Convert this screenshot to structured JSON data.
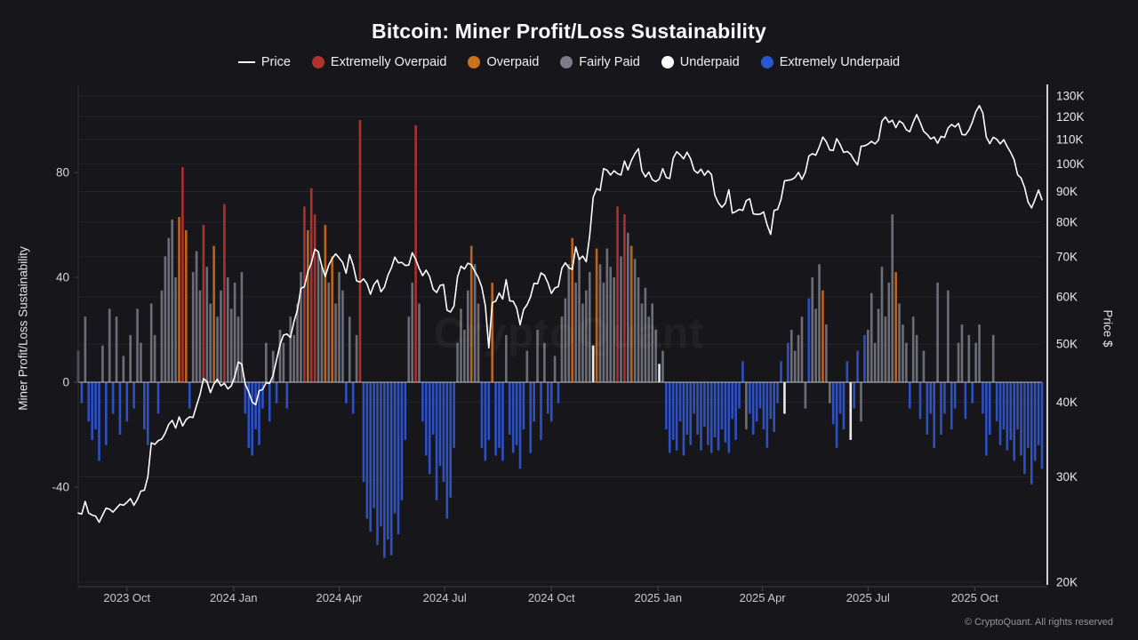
{
  "header": {
    "title": "Bitcoin: Miner Profit/Loss Sustainability"
  },
  "legend": {
    "items": [
      {
        "label": "Price",
        "type": "line",
        "color": "#ffffff"
      },
      {
        "label": "Extremelly Overpaid",
        "type": "dot",
        "color": "#b23230"
      },
      {
        "label": "Overpaid",
        "type": "dot",
        "color": "#c9731f"
      },
      {
        "label": "Fairly Paid",
        "type": "dot",
        "color": "#7d7d89"
      },
      {
        "label": "Underpaid",
        "type": "dot",
        "color": "#ffffff"
      },
      {
        "label": "Extremely Underpaid",
        "type": "dot",
        "color": "#2757d1"
      }
    ]
  },
  "axes": {
    "left_title": "Miner Profit/Loss Sustainability",
    "right_title": "Price $"
  },
  "watermark": {
    "text": "CryptoQuant"
  },
  "footer": {
    "copyright": "© CryptoQuant. All rights reserved"
  },
  "chart_data": {
    "type": "bar+line",
    "title": "Bitcoin: Miner Profit/Loss Sustainability",
    "x_start": "2023-08-20",
    "x_step_days": 3,
    "n": 278,
    "x_tick_labels": [
      {
        "date": "2023-10-01",
        "label": "2023 Oct"
      },
      {
        "date": "2024-01-01",
        "label": "2024 Jan"
      },
      {
        "date": "2024-04-01",
        "label": "2024 Apr"
      },
      {
        "date": "2024-07-01",
        "label": "2024 Jul"
      },
      {
        "date": "2024-10-01",
        "label": "2024 Oct"
      },
      {
        "date": "2025-01-01",
        "label": "2025 Jan"
      },
      {
        "date": "2025-04-01",
        "label": "2025 Apr"
      },
      {
        "date": "2025-07-01",
        "label": "2025 Jul"
      },
      {
        "date": "2025-10-01",
        "label": "2025 Oct"
      }
    ],
    "left_axis": {
      "label": "Miner Profit/Loss Sustainability",
      "ticks": [
        80,
        40,
        0,
        -40
      ]
    },
    "right_axis": {
      "label": "Price $",
      "scale": "log",
      "ticks": [
        {
          "v": 130,
          "label": "130K"
        },
        {
          "v": 120,
          "label": "120K"
        },
        {
          "v": 110,
          "label": "110K"
        },
        {
          "v": 100,
          "label": "100K"
        },
        {
          "v": 90,
          "label": "90K"
        },
        {
          "v": 80,
          "label": "80K"
        },
        {
          "v": 70,
          "label": "70K"
        },
        {
          "v": 60,
          "label": "60K"
        },
        {
          "v": 50,
          "label": "50K"
        },
        {
          "v": 40,
          "label": "40K"
        },
        {
          "v": 30,
          "label": "30K"
        },
        {
          "v": 20,
          "label": "20K"
        }
      ]
    },
    "categories_legend": {
      "g": "Fairly Paid",
      "o": "Overpaid",
      "r": "Extremelly Overpaid",
      "w": "Underpaid",
      "b": "Extremely Underpaid"
    },
    "colors": {
      "g": "#75757f",
      "o": "#c2661e",
      "r": "#b23230",
      "w": "#f2f2f5",
      "b": "#2e53c9",
      "price": "#ffffff",
      "grid": "#232329",
      "zero_line": "#dcdce0",
      "axis_line": "#3f3f45",
      "x_tick": "#4a4a50",
      "right_spine": "#ffffff",
      "left_spine": "#2c2c31",
      "tick_text": "#d6d6da",
      "x_text": "#c9c9ce",
      "background": "#17171b"
    },
    "price_series_k": [
      26.1,
      26.0,
      27.3,
      26.1,
      25.9,
      25.8,
      25.2,
      25.9,
      26.6,
      26.5,
      26.2,
      26.6,
      27.0,
      26.9,
      27.2,
      27.6,
      26.9,
      27.5,
      28.4,
      28.5,
      30.0,
      34.2,
      34.0,
      34.5,
      34.7,
      35.5,
      36.7,
      37.3,
      36.2,
      37.8,
      36.5,
      37.4,
      37.8,
      37.7,
      39.5,
      41.2,
      43.8,
      43.3,
      41.5,
      42.9,
      43.7,
      42.6,
      43.0,
      42.1,
      42.6,
      44.2,
      46.7,
      46.3,
      42.9,
      41.6,
      40.0,
      39.6,
      41.8,
      42.0,
      43.1,
      43.0,
      44.3,
      47.1,
      49.9,
      51.8,
      52.0,
      51.3,
      54.5,
      57.0,
      62.0,
      62.4,
      66.1,
      68.3,
      72.1,
      71.4,
      67.6,
      64.9,
      67.8,
      69.6,
      70.8,
      69.7,
      68.5,
      65.7,
      70.6,
      67.8,
      63.8,
      63.5,
      64.3,
      63.1,
      60.6,
      62.9,
      64.0,
      61.2,
      62.3,
      65.2,
      67.1,
      69.9,
      68.4,
      68.5,
      67.7,
      67.8,
      71.1,
      69.3,
      66.9,
      65.1,
      66.5,
      64.9,
      61.8,
      61.0,
      62.7,
      62.9,
      57.0,
      56.6,
      57.9,
      64.8,
      67.5,
      66.8,
      68.3,
      67.9,
      66.2,
      64.6,
      62.3,
      58.0,
      49.3,
      58.7,
      59.0,
      60.9,
      59.5,
      64.1,
      59.1,
      59.0,
      57.5,
      53.9,
      57.1,
      58.2,
      60.0,
      63.2,
      63.1,
      65.8,
      65.2,
      63.3,
      60.8,
      62.1,
      62.4,
      67.0,
      68.4,
      67.1,
      66.7,
      72.7,
      69.3,
      70.2,
      68.7,
      76.0,
      88.0,
      91.0,
      90.4,
      98.3,
      97.7,
      95.9,
      97.5,
      96.4,
      95.9,
      101.2,
      97.8,
      101.4,
      104.1,
      106.1,
      97.5,
      95.2,
      97.0,
      94.2,
      93.5,
      94.4,
      98.3,
      95.0,
      94.6,
      102.3,
      104.9,
      103.7,
      102.1,
      104.7,
      102.1,
      97.7,
      96.6,
      98.1,
      95.8,
      97.5,
      96.1,
      88.7,
      86.1,
      84.7,
      86.0,
      90.6,
      82.8,
      83.3,
      84.0,
      83.7,
      86.9,
      87.5,
      82.6,
      82.4,
      82.5,
      83.2,
      79.2,
      76.3,
      83.7,
      84.0,
      87.3,
      93.8,
      94.0,
      94.2,
      95.0,
      96.9,
      94.3,
      97.0,
      103.2,
      104.1,
      103.5,
      106.8,
      111.0,
      109.0,
      105.6,
      105.4,
      110.3,
      107.8,
      104.6,
      105.0,
      103.9,
      101.5,
      99.7,
      107.1,
      107.3,
      108.0,
      109.2,
      108.1,
      109.7,
      118.0,
      119.9,
      117.4,
      118.4,
      115.1,
      118.1,
      117.0,
      114.2,
      113.3,
      117.5,
      121.0,
      117.4,
      113.5,
      112.1,
      110.2,
      111.0,
      108.4,
      111.3,
      110.8,
      114.9,
      116.5,
      115.4,
      117.0,
      112.1,
      111.9,
      114.0,
      117.6,
      122.4,
      125.3,
      121.7,
      111.0,
      108.2,
      110.9,
      110.1,
      108.1,
      109.9,
      107.0,
      104.6,
      101.7,
      96.0,
      94.8,
      91.5,
      86.5,
      84.5,
      87.3,
      90.5,
      87.2
    ],
    "bar_values": [
      12,
      -8,
      25,
      -15,
      -22,
      -18,
      -30,
      14,
      -24,
      28,
      -12,
      25,
      -20,
      10,
      -15,
      18,
      -10,
      28,
      15,
      -18,
      -24,
      30,
      18,
      -12,
      35,
      48,
      55,
      62,
      40,
      63,
      82,
      58,
      -10,
      42,
      50,
      35,
      60,
      44,
      30,
      52,
      25,
      35,
      68,
      40,
      28,
      38,
      25,
      42,
      -12,
      -25,
      -28,
      -18,
      -24,
      -10,
      15,
      -15,
      12,
      -8,
      20,
      15,
      -10,
      25,
      18,
      30,
      42,
      67,
      58,
      74,
      64,
      50,
      44,
      60,
      38,
      48,
      30,
      42,
      35,
      -8,
      25,
      -12,
      18,
      100,
      -38,
      -52,
      -57,
      -48,
      -62,
      -55,
      -67,
      -60,
      -66,
      -50,
      -58,
      -45,
      -22,
      25,
      38,
      98,
      30,
      -15,
      -28,
      -35,
      -20,
      -45,
      -32,
      -38,
      -52,
      -44,
      -25,
      15,
      28,
      20,
      35,
      52,
      45,
      30,
      -25,
      -30,
      -22,
      38,
      -28,
      -25,
      -30,
      18,
      -20,
      -27,
      -24,
      -33,
      -18,
      12,
      -27,
      -15,
      20,
      -22,
      15,
      -12,
      -15,
      10,
      -8,
      25,
      32,
      45,
      55,
      38,
      47,
      30,
      35,
      42,
      14,
      51,
      45,
      38,
      51,
      44,
      40,
      67,
      48,
      64,
      57,
      52,
      47,
      40,
      30,
      36,
      25,
      30,
      20,
      7,
      12,
      -18,
      -27,
      -22,
      -26,
      -15,
      -28,
      -20,
      -24,
      -12,
      -20,
      -26,
      -17,
      -24,
      -27,
      -21,
      -26,
      -18,
      -23,
      -27,
      -14,
      -22,
      -10,
      8,
      -18,
      -12,
      -20,
      -15,
      -10,
      -18,
      -25,
      -14,
      -19,
      -8,
      8,
      -12,
      15,
      20,
      12,
      18,
      25,
      -10,
      32,
      40,
      28,
      45,
      35,
      22,
      -8,
      -16,
      -25,
      -12,
      -18,
      8,
      -22,
      -10,
      12,
      -15,
      18,
      20,
      34,
      15,
      28,
      44,
      25,
      38,
      64,
      42,
      30,
      22,
      15,
      -10,
      25,
      18,
      -14,
      12,
      -20,
      -12,
      -25,
      38,
      -20,
      -12,
      35,
      -18,
      -10,
      15,
      22,
      -14,
      18,
      -8,
      15,
      22,
      -12,
      -28,
      -20,
      18,
      -15,
      -24,
      -18,
      -26,
      -22,
      -30,
      -18,
      -28,
      -35,
      -25,
      -39,
      -30,
      -24,
      -33
    ],
    "bar_cats": "gbgbbbbgbgbgbgbgbggbbggbgggggorobgggrggoggrgggggbbbbbbgbgbggbggggrorrggogogggbgbgrbbbbbbbbbbbbbggrgbbbbbbbbbbggggoggbbbobbbgbbbbbgbbgbgbbgbgggogggggwogggggrgrgogggggggwgbbbbbbbbbbbbbbbbbbbbbbbgbbbbbbbbbbwbgggggbgggoggbbbbbwbbgbggggggggogggbggbgbbbgbbgbbggbgbggbbbgbbbbbbbbbbbbbb"
  }
}
